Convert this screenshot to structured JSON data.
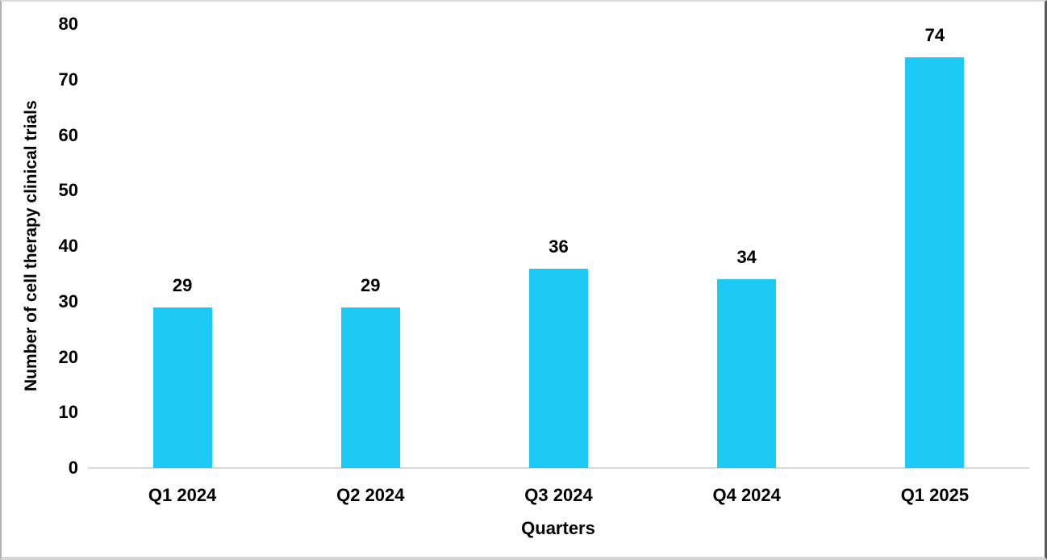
{
  "chart_data": {
    "type": "bar",
    "title": "",
    "categories": [
      "Q1 2024",
      "Q2 2024",
      "Q3 2024",
      "Q4 2024",
      "Q1 2025"
    ],
    "values": [
      29,
      29,
      36,
      34,
      74
    ],
    "data_labels": [
      "29",
      "29",
      "36",
      "34",
      "74"
    ],
    "xlabel": "Quarters",
    "ylabel": "Number of cell therapy clinical trials",
    "ylim": [
      0,
      80
    ],
    "yticks": [
      0,
      10,
      20,
      30,
      40,
      50,
      60,
      70,
      80
    ],
    "grid": false,
    "legend": "none",
    "colors": {
      "bar": "#1dc9f5",
      "axis_line": "#d9d9d9",
      "text": "#000000",
      "background": "#ffffff"
    }
  }
}
